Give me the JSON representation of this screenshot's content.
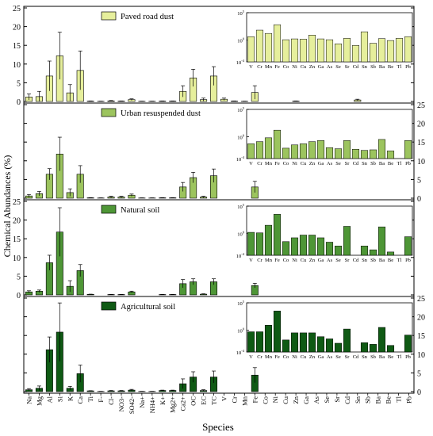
{
  "figure": {
    "ylabel": "Chemical Abundances (%)",
    "xlabel": "Species"
  },
  "main_axis": {
    "categories": [
      "Na",
      "Mg",
      "Al",
      "Si",
      "K",
      "Ca",
      "Ti",
      "F-",
      "Cl-",
      "NO3-",
      "SO42-",
      "Na+",
      "NH4+",
      "K+",
      "Mg2+",
      "Ca2+",
      "OC",
      "EC",
      "TC",
      "V",
      "Cr",
      "Mn",
      "Fe",
      "Co",
      "Ni",
      "Cu",
      "Zn",
      "Ga",
      "As",
      "Se",
      "Sr",
      "Cd",
      "Sn",
      "Sb",
      "Ba",
      "Be",
      "Tl",
      "Pb"
    ],
    "ylim": [
      0,
      25
    ],
    "ticks": [
      0,
      5,
      10,
      15,
      20,
      25
    ]
  },
  "inset_axis": {
    "categories": [
      "V",
      "Cr",
      "Mn",
      "Fe",
      "Co",
      "Ni",
      "Cu",
      "Zn",
      "Ga",
      "As",
      "Se",
      "Sr",
      "Cd",
      "Sn",
      "Sb",
      "Ba",
      "Be",
      "Tl",
      "Pb"
    ],
    "log_ticks": [
      -4,
      0,
      5
    ]
  },
  "colors": {
    "paved": "#e6ef9c",
    "urban": "#9cc45e",
    "natural": "#4e9636",
    "agricultural": "#0f5a14",
    "axis": "#000000"
  },
  "chart_data": [
    {
      "type": "bar",
      "panel": "Paved road dust",
      "legend_label": "Paved road dust",
      "color_key": "paved",
      "left_ticks_visible": true,
      "right_ticks_visible": false,
      "values": [
        1.2,
        1.3,
        6.8,
        12.2,
        2.3,
        8.3,
        0.1,
        0.05,
        0.15,
        0.1,
        0.5,
        0.05,
        0.05,
        0.1,
        0.1,
        2.7,
        6.3,
        0.5,
        6.8,
        0.6,
        0.1,
        0.05,
        2.4,
        0,
        0,
        0,
        0.1,
        0,
        0,
        0,
        0,
        0,
        0.4,
        0,
        0,
        0,
        0,
        0
      ],
      "errors": [
        0.8,
        1.4,
        4.0,
        6.3,
        2.2,
        5.2,
        0.05,
        0.05,
        0.1,
        0.05,
        0.2,
        0.05,
        0.05,
        0.05,
        0.05,
        1.5,
        2.3,
        0.4,
        2.5,
        0.3,
        0.05,
        0.05,
        1.8,
        0,
        0,
        0,
        0.05,
        0,
        0,
        0,
        0,
        0,
        0.2,
        0,
        0,
        0,
        0,
        0
      ],
      "inset_values": [
        0.6,
        1.8,
        1.2,
        2.8,
        0.05,
        0.2,
        0.15,
        0.9,
        0.2,
        0.05,
        -0.7,
        0.3,
        -1.0,
        1.5,
        -0.6,
        0.25,
        -0.1,
        0.3,
        0.6
      ]
    },
    {
      "type": "bar",
      "panel": "Urban resuspended dust",
      "legend_label": "Urban resuspended dust",
      "color_key": "urban",
      "left_ticks_visible": false,
      "right_ticks_visible": true,
      "values": [
        0.6,
        1.2,
        6.4,
        11.8,
        1.5,
        6.4,
        0.1,
        0.05,
        0.3,
        0.3,
        0.8,
        0.05,
        0.05,
        0.1,
        0.1,
        3.0,
        5.5,
        0.3,
        6.0,
        0,
        0,
        0,
        3.0,
        0,
        0,
        0,
        0,
        0,
        0,
        0,
        0,
        0,
        0,
        0,
        0,
        0,
        0,
        0
      ],
      "errors": [
        0.4,
        0.6,
        1.5,
        4.5,
        1.0,
        2.3,
        0.05,
        0.05,
        0.2,
        0.2,
        0.3,
        0.05,
        0.05,
        0.05,
        0.05,
        1.2,
        1.4,
        0.2,
        1.8,
        0,
        0,
        0,
        1.5,
        0,
        0,
        0,
        0,
        0,
        0,
        0,
        0,
        0,
        0,
        0,
        0,
        0,
        0,
        0
      ],
      "inset_values": [
        -1.3,
        -0.9,
        -0.2,
        1.2,
        -2.1,
        -1.5,
        -1.3,
        -0.9,
        -0.7,
        -2.0,
        -2.2,
        -0.7,
        -2.3,
        -2.5,
        -2.4,
        -0.5,
        -2.6,
        null,
        -0.7
      ]
    },
    {
      "type": "bar",
      "panel": "Natural soil",
      "legend_label": "Natural soil",
      "color_key": "natural",
      "left_ticks_visible": true,
      "right_ticks_visible": false,
      "values": [
        0.8,
        1.0,
        8.6,
        16.8,
        2.3,
        6.5,
        0.15,
        0,
        0.1,
        0.1,
        0.8,
        0,
        0,
        0.1,
        0.1,
        3.0,
        3.5,
        0.2,
        3.5,
        0,
        0,
        0,
        2.5,
        0,
        0,
        0,
        0,
        0,
        0,
        0,
        0,
        0,
        0,
        0,
        0,
        0,
        0,
        0
      ],
      "errors": [
        0.3,
        0.3,
        2.0,
        6.5,
        1.5,
        1.6,
        0.05,
        0,
        0.05,
        0.05,
        0.2,
        0,
        0,
        0.05,
        0.05,
        1.1,
        0.8,
        0.1,
        0.8,
        0,
        0,
        0,
        0.6,
        0,
        0,
        0,
        0,
        0,
        0,
        0,
        0,
        0,
        0,
        0,
        0,
        0,
        0,
        0
      ],
      "inset_values": [
        0.2,
        0.1,
        1.5,
        3.5,
        -1.5,
        -0.8,
        -0.3,
        -0.3,
        -0.8,
        -1.6,
        -2.3,
        1.3,
        null,
        -2.3,
        -3.0,
        1.2,
        -3.4,
        null,
        -0.6
      ]
    },
    {
      "type": "bar",
      "panel": "Agricultural soil",
      "legend_label": "Agricultural soil",
      "color_key": "agricultural",
      "left_ticks_visible": false,
      "right_ticks_visible": true,
      "values": [
        0.5,
        0.9,
        11.2,
        15.9,
        0.9,
        4.8,
        0.2,
        0.05,
        0.2,
        0.2,
        0.4,
        0.05,
        0.05,
        0.3,
        0.3,
        2.1,
        3.9,
        0.3,
        3.9,
        0,
        0,
        0,
        4.4,
        0,
        0,
        0,
        0,
        0,
        0,
        0,
        0,
        0,
        0,
        0,
        0,
        0,
        0,
        0
      ],
      "errors": [
        0.3,
        0.6,
        3.4,
        7.8,
        0.5,
        2.3,
        0.05,
        0.05,
        0.1,
        0.1,
        0.2,
        0.05,
        0.05,
        0.1,
        0.1,
        1.3,
        1.4,
        0.2,
        1.6,
        0,
        0,
        0,
        2.0,
        0,
        0,
        0,
        0,
        0,
        0,
        0,
        0,
        0,
        0,
        0,
        0,
        0,
        0,
        0
      ],
      "inset_values": [
        -0.3,
        -0.3,
        0.9,
        3.5,
        -1.8,
        -0.5,
        -0.5,
        -0.5,
        -1.2,
        -1.6,
        -2.4,
        0.2,
        null,
        -2.3,
        -2.6,
        0.5,
        -2.8,
        null,
        -0.9
      ]
    }
  ]
}
